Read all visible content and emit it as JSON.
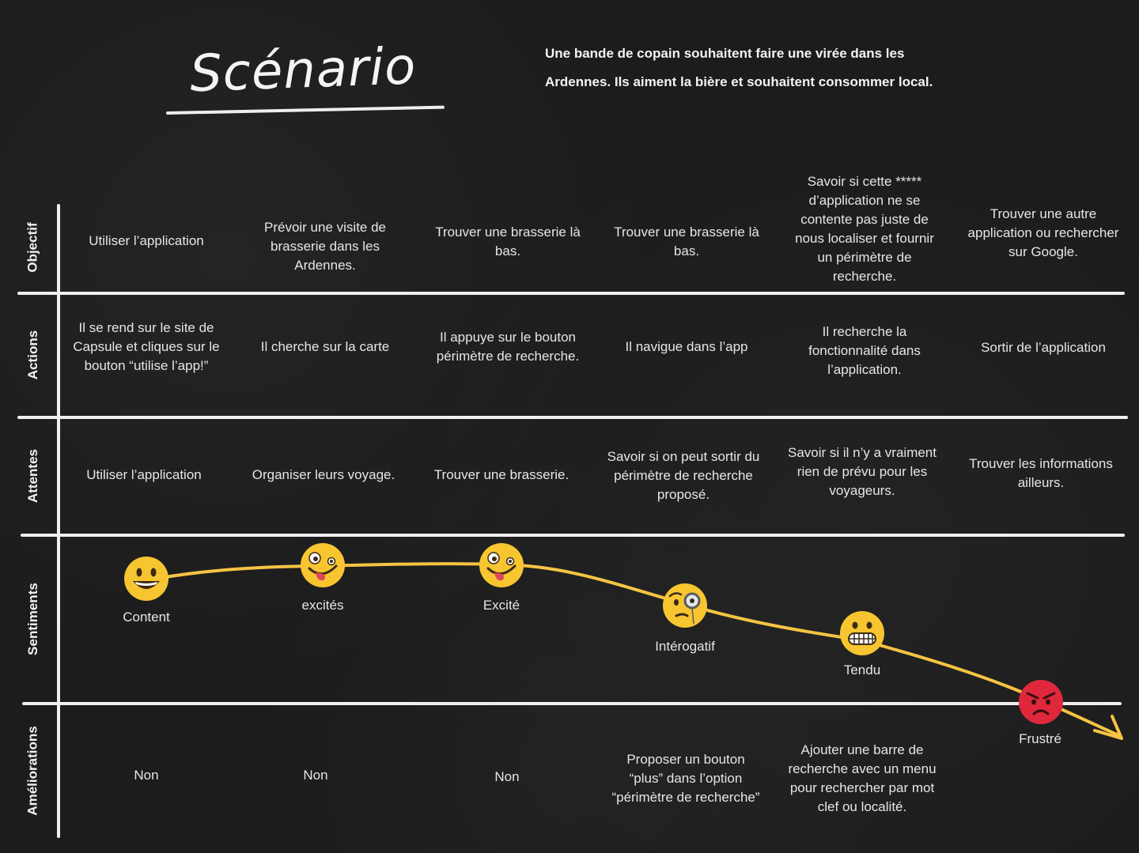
{
  "title": "Scénario",
  "scenario": "Une bande de copain souhaitent faire une virée dans les Ardennes. Ils aiment la bière et souhaitent consommer local.",
  "colors": {
    "curve": "#f6c443",
    "lines": "#f0f0f0",
    "background": "#1c1c1c"
  },
  "rows": [
    {
      "label": "Objectif",
      "cells": [
        "Utiliser l’application",
        "Prévoir une visite de brasserie dans les Ardennes.",
        "Trouver une brasserie là bas.",
        "Trouver une brasserie là bas.",
        "Savoir si cette ***** d’application ne se contente pas juste de nous localiser et fournir un périmètre de recherche.",
        "Trouver une autre application ou rechercher sur Google."
      ]
    },
    {
      "label": "Actions",
      "cells": [
        "Il se rend sur le site de Capsule et cliques sur le bouton “utilise l’app!”",
        "Il cherche sur la carte",
        "Il appuye sur le bouton périmètre de recherche.",
        "Il navigue dans l’app",
        "Il recherche la fonctionnalité dans l’application.",
        "Sortir de l’application"
      ]
    },
    {
      "label": "Attentes",
      "cells": [
        "Utiliser l’application",
        "Organiser leurs voyage.",
        "Trouver une brasserie.",
        "Savoir si on peut sortir du périmètre de recherche proposé.",
        "Savoir si il n’y a vraiment rien de prévu pour les voyageurs.",
        "Trouver les informations ailleurs."
      ]
    },
    {
      "label": "Sentiments",
      "cells": []
    },
    {
      "label": "Améliorations",
      "cells": [
        "Non",
        "Non",
        "Non",
        "Proposer un bouton “plus” dans l’option “périmètre de recherche”",
        "Ajouter une barre de recherche avec un menu pour rechercher par mot clef ou localité.",
        ""
      ]
    }
  ],
  "sentiments": [
    {
      "label": "Content",
      "icon": "grinning-face-icon"
    },
    {
      "label": "excités",
      "icon": "zany-face-icon"
    },
    {
      "label": "Excité",
      "icon": "zany-face-icon"
    },
    {
      "label": "Intérogatif",
      "icon": "monocle-face-icon"
    },
    {
      "label": "Tendu",
      "icon": "grimacing-face-icon"
    },
    {
      "label": "Frustré",
      "icon": "angry-face-icon"
    }
  ]
}
